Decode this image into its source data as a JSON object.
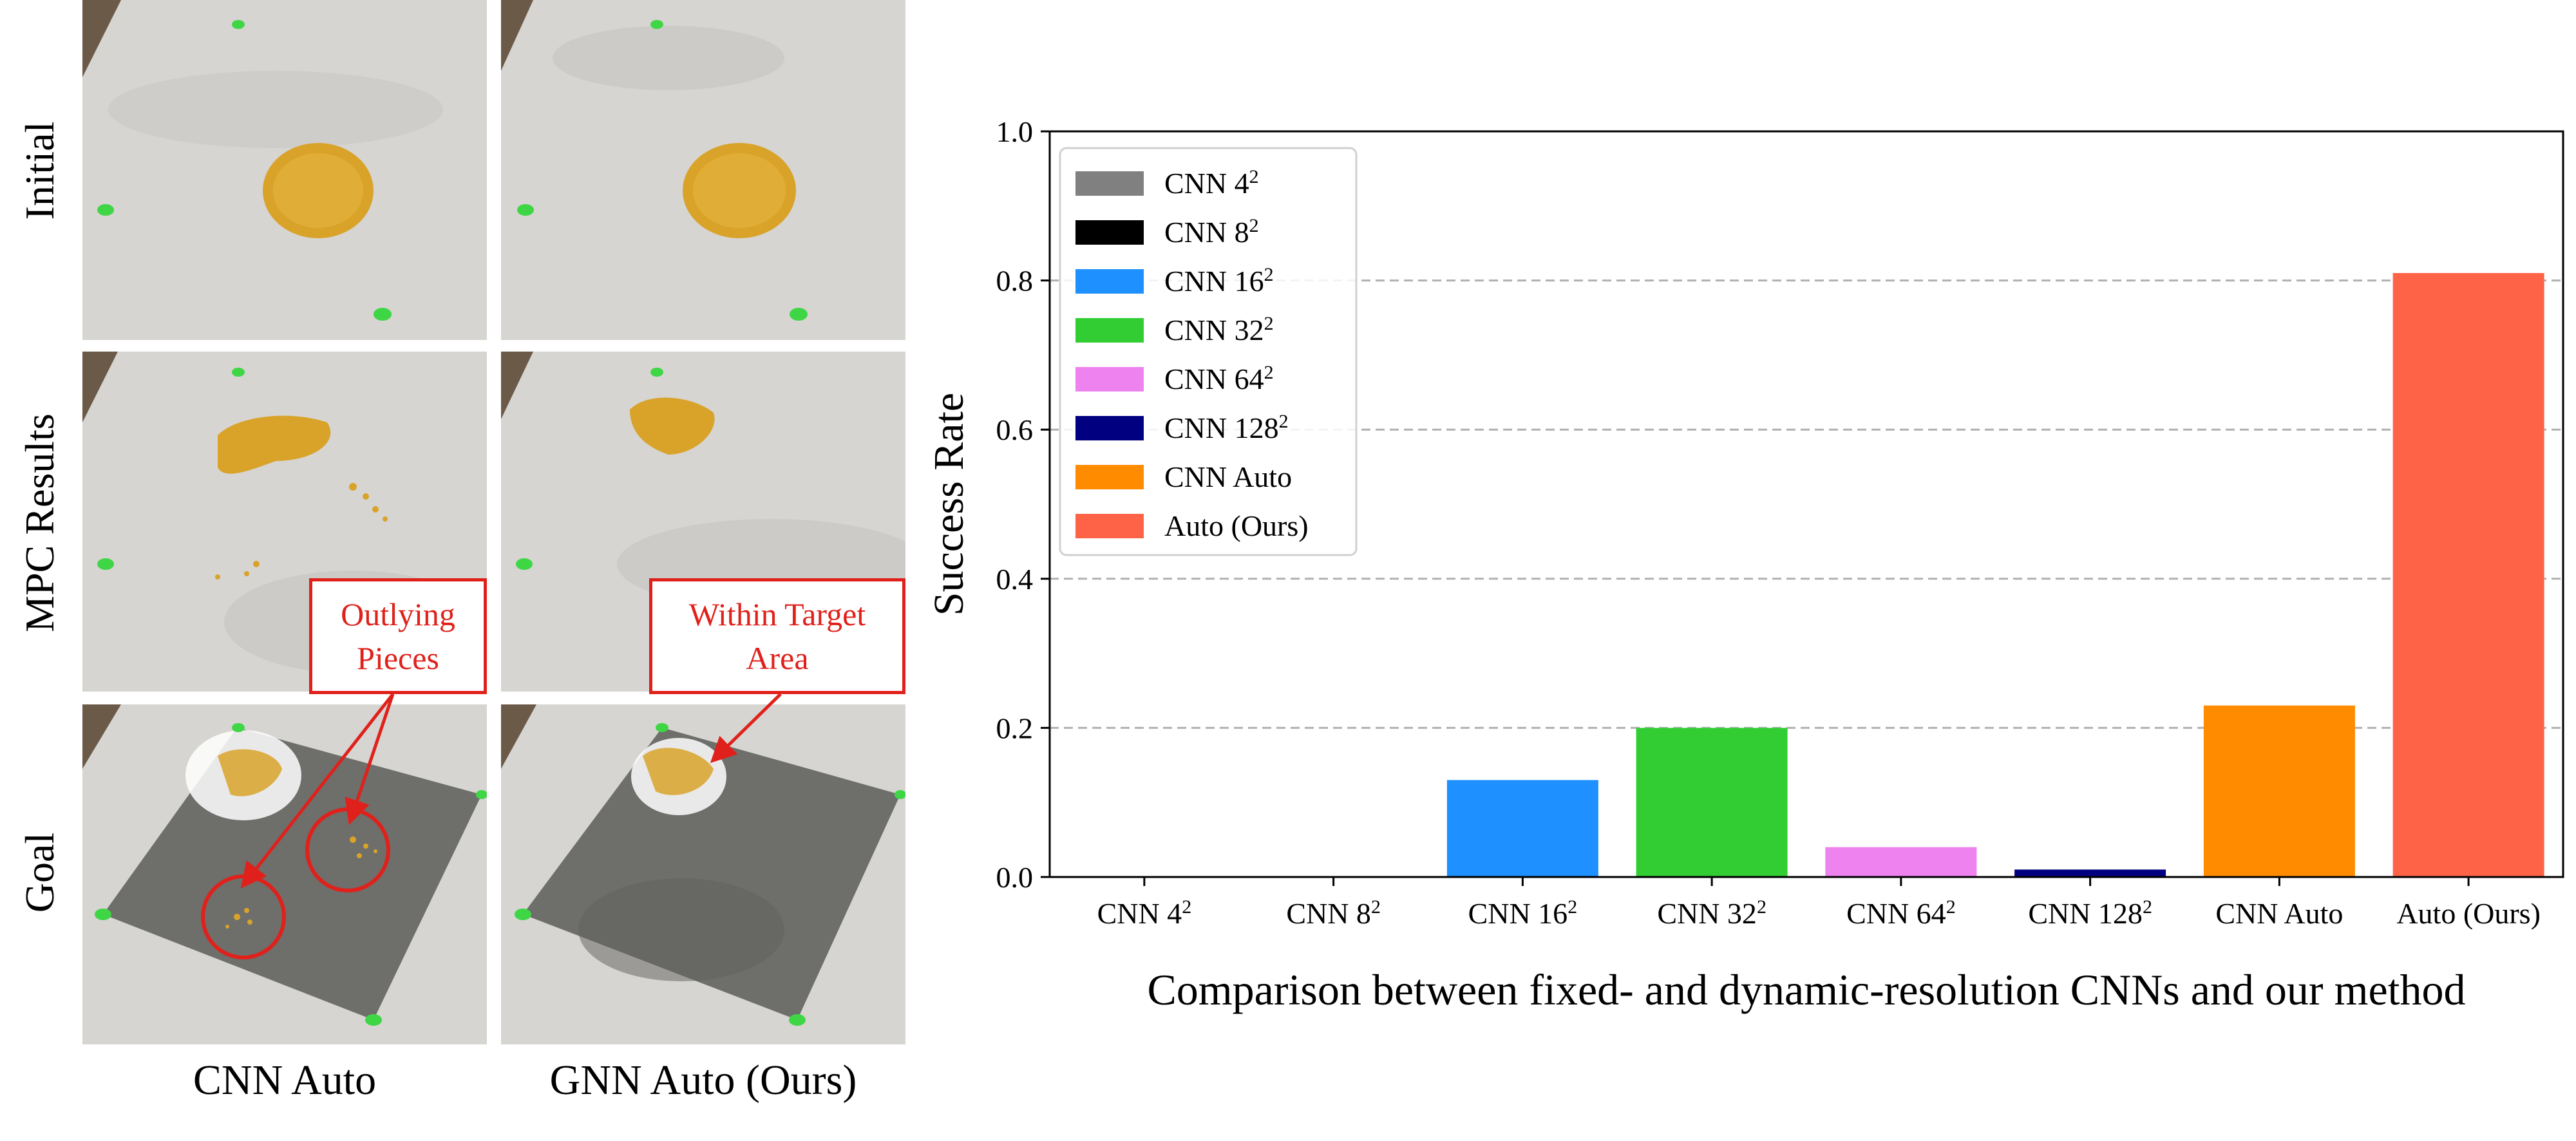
{
  "figure": {
    "row_labels": [
      "Initial",
      "MPC Results",
      "Goal"
    ],
    "column_labels": [
      "CNN Auto",
      "GNN Auto (Ours)"
    ],
    "callouts": {
      "left": [
        "Outlying",
        "Pieces"
      ],
      "right": [
        "Within Target",
        "Area"
      ]
    },
    "colors": {
      "table": "#d6d5d1",
      "pile": "#d9a32a",
      "marker": "#3fd646",
      "mat": "#6e6e6b",
      "annotation": "#e0211b"
    }
  },
  "chart_data": {
    "type": "bar",
    "categories": [
      "CNN 4²",
      "CNN 8²",
      "CNN 16²",
      "CNN 32²",
      "CNN 64²",
      "CNN 128²",
      "CNN Auto",
      "Auto (Ours)"
    ],
    "values": [
      0.0,
      0.0,
      0.13,
      0.2,
      0.04,
      0.01,
      0.23,
      0.81
    ],
    "colors": [
      "#808080",
      "#000000",
      "#1e90ff",
      "#32cd32",
      "#ee82ee",
      "#000080",
      "#ff8c00",
      "#ff6347"
    ],
    "legend": [
      {
        "base": "CNN 4",
        "sup": "2",
        "color": "#808080"
      },
      {
        "base": "CNN 8",
        "sup": "2",
        "color": "#000000"
      },
      {
        "base": "CNN 16",
        "sup": "2",
        "color": "#1e90ff"
      },
      {
        "base": "CNN 32",
        "sup": "2",
        "color": "#32cd32"
      },
      {
        "base": "CNN 64",
        "sup": "2",
        "color": "#ee82ee"
      },
      {
        "base": "CNN 128",
        "sup": "2",
        "color": "#000080"
      },
      {
        "base": "CNN Auto",
        "sup": "",
        "color": "#ff8c00"
      },
      {
        "base": "Auto (Ours)",
        "sup": "",
        "color": "#ff6347"
      }
    ],
    "tick_labels_x": [
      {
        "base": "CNN 4",
        "sup": "2"
      },
      {
        "base": "CNN 8",
        "sup": "2"
      },
      {
        "base": "CNN 16",
        "sup": "2"
      },
      {
        "base": "CNN 32",
        "sup": "2"
      },
      {
        "base": "CNN 64",
        "sup": "2"
      },
      {
        "base": "CNN 128",
        "sup": "2"
      },
      {
        "base": "CNN Auto",
        "sup": ""
      },
      {
        "base": "Auto (Ours)",
        "sup": ""
      }
    ],
    "yticks": [
      "0.0",
      "0.2",
      "0.4",
      "0.6",
      "0.8",
      "1.0"
    ],
    "ylim": [
      0,
      1.0
    ],
    "ylabel": "Success Rate",
    "xlabel": "Comparison between fixed- and dynamic-resolution CNNs and our method",
    "grid": "horizontal dashed at 0.2, 0.4, 0.6, 0.8",
    "legend_position": "top-left"
  }
}
